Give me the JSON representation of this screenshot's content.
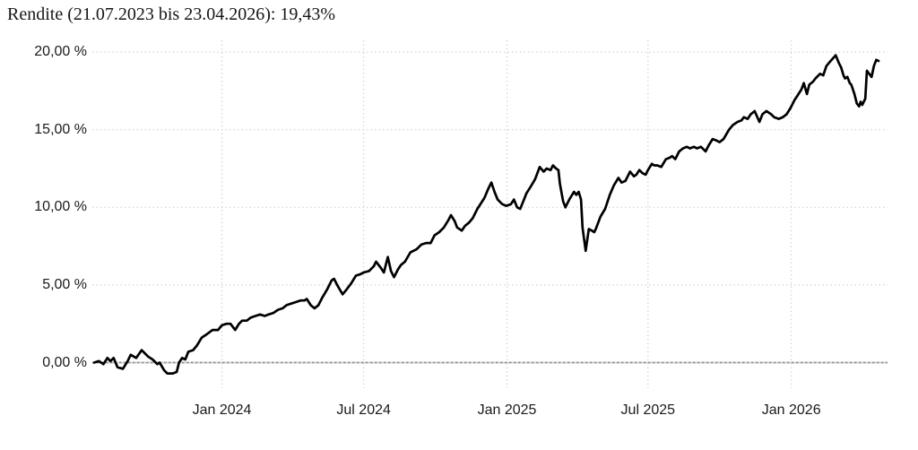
{
  "chart": {
    "title": "Rendite (21.07.2023 bis 23.04.2026): 19,43%"
  },
  "colors": {
    "line": "#000000",
    "grid": "#d2d2d2",
    "zero_line_dash": "#8c8c8c",
    "zero_line_base": "#d9d9d9",
    "text": "#1a1a1a",
    "background": "#ffffff"
  },
  "chart_data": {
    "type": "line",
    "title": "Rendite (21.07.2023 bis 23.04.2026): 19,43%",
    "period_start": "21.07.2023",
    "period_end": "23.04.2026",
    "total_return": "19,43%",
    "xlabel": "",
    "ylabel": "",
    "grid": true,
    "legend": "none",
    "zero_line": true,
    "x_range": [
      "2023-07-21",
      "2026-04-23"
    ],
    "ylim": [
      -1.6,
      20.8
    ],
    "x_ticks": [
      {
        "label": "Jan 2024",
        "date": "2024-01-01"
      },
      {
        "label": "Jul 2024",
        "date": "2024-07-01"
      },
      {
        "label": "Jan 2025",
        "date": "2025-01-01"
      },
      {
        "label": "Jul 2025",
        "date": "2025-07-01"
      },
      {
        "label": "Jan 2026",
        "date": "2026-01-01"
      }
    ],
    "y_ticks": [
      {
        "label": "20,00 %",
        "value": 20
      },
      {
        "label": "15,00 %",
        "value": 15
      },
      {
        "label": "10,00 %",
        "value": 10
      },
      {
        "label": "5,00 %",
        "value": 5
      },
      {
        "label": "0,00 %",
        "value": 0
      }
    ],
    "series": [
      {
        "name": "Rendite",
        "color": "#000000",
        "points": [
          [
            "2023-07-21",
            0.0
          ],
          [
            "2023-07-27",
            0.1
          ],
          [
            "2023-08-02",
            -0.1
          ],
          [
            "2023-08-07",
            0.3
          ],
          [
            "2023-08-11",
            0.1
          ],
          [
            "2023-08-15",
            0.3
          ],
          [
            "2023-08-20",
            -0.3
          ],
          [
            "2023-08-27",
            -0.4
          ],
          [
            "2023-09-02",
            0.1
          ],
          [
            "2023-09-06",
            0.5
          ],
          [
            "2023-09-13",
            0.3
          ],
          [
            "2023-09-20",
            0.8
          ],
          [
            "2023-09-28",
            0.4
          ],
          [
            "2023-10-04",
            0.2
          ],
          [
            "2023-10-10",
            -0.1
          ],
          [
            "2023-10-13",
            0.0
          ],
          [
            "2023-10-19",
            -0.5
          ],
          [
            "2023-10-23",
            -0.7
          ],
          [
            "2023-10-30",
            -0.7
          ],
          [
            "2023-11-04",
            -0.6
          ],
          [
            "2023-11-07",
            0.0
          ],
          [
            "2023-11-11",
            0.3
          ],
          [
            "2023-11-15",
            0.2
          ],
          [
            "2023-11-19",
            0.7
          ],
          [
            "2023-11-25",
            0.8
          ],
          [
            "2023-11-30",
            1.1
          ],
          [
            "2023-12-06",
            1.6
          ],
          [
            "2023-12-12",
            1.8
          ],
          [
            "2023-12-20",
            2.1
          ],
          [
            "2023-12-27",
            2.1
          ],
          [
            "2024-01-01",
            2.4
          ],
          [
            "2024-01-07",
            2.5
          ],
          [
            "2024-01-12",
            2.5
          ],
          [
            "2024-01-18",
            2.1
          ],
          [
            "2024-01-23",
            2.5
          ],
          [
            "2024-01-27",
            2.7
          ],
          [
            "2024-02-02",
            2.7
          ],
          [
            "2024-02-07",
            2.9
          ],
          [
            "2024-02-13",
            3.0
          ],
          [
            "2024-02-19",
            3.1
          ],
          [
            "2024-02-25",
            3.0
          ],
          [
            "2024-03-01",
            3.1
          ],
          [
            "2024-03-07",
            3.2
          ],
          [
            "2024-03-13",
            3.4
          ],
          [
            "2024-03-19",
            3.5
          ],
          [
            "2024-03-24",
            3.7
          ],
          [
            "2024-03-30",
            3.8
          ],
          [
            "2024-04-05",
            3.9
          ],
          [
            "2024-04-11",
            4.0
          ],
          [
            "2024-04-16",
            4.0
          ],
          [
            "2024-04-19",
            4.1
          ],
          [
            "2024-04-24",
            3.7
          ],
          [
            "2024-04-29",
            3.5
          ],
          [
            "2024-05-04",
            3.7
          ],
          [
            "2024-05-09",
            4.2
          ],
          [
            "2024-05-15",
            4.7
          ],
          [
            "2024-05-21",
            5.3
          ],
          [
            "2024-05-24",
            5.4
          ],
          [
            "2024-05-29",
            4.9
          ],
          [
            "2024-06-04",
            4.4
          ],
          [
            "2024-06-09",
            4.7
          ],
          [
            "2024-06-15",
            5.1
          ],
          [
            "2024-06-21",
            5.6
          ],
          [
            "2024-06-27",
            5.7
          ],
          [
            "2024-07-01",
            5.8
          ],
          [
            "2024-07-08",
            5.9
          ],
          [
            "2024-07-14",
            6.2
          ],
          [
            "2024-07-17",
            6.5
          ],
          [
            "2024-07-23",
            6.1
          ],
          [
            "2024-07-27",
            5.8
          ],
          [
            "2024-08-01",
            6.8
          ],
          [
            "2024-08-05",
            5.9
          ],
          [
            "2024-08-09",
            5.5
          ],
          [
            "2024-08-14",
            6.0
          ],
          [
            "2024-08-18",
            6.3
          ],
          [
            "2024-08-23",
            6.5
          ],
          [
            "2024-08-30",
            7.1
          ],
          [
            "2024-09-07",
            7.3
          ],
          [
            "2024-09-13",
            7.6
          ],
          [
            "2024-09-19",
            7.7
          ],
          [
            "2024-09-25",
            7.7
          ],
          [
            "2024-09-30",
            8.2
          ],
          [
            "2024-10-06",
            8.4
          ],
          [
            "2024-10-12",
            8.7
          ],
          [
            "2024-10-18",
            9.2
          ],
          [
            "2024-10-21",
            9.5
          ],
          [
            "2024-10-26",
            9.1
          ],
          [
            "2024-10-29",
            8.7
          ],
          [
            "2024-11-04",
            8.5
          ],
          [
            "2024-11-08",
            8.8
          ],
          [
            "2024-11-13",
            9.0
          ],
          [
            "2024-11-18",
            9.3
          ],
          [
            "2024-11-24",
            9.9
          ],
          [
            "2024-12-03",
            10.6
          ],
          [
            "2024-12-08",
            11.2
          ],
          [
            "2024-12-12",
            11.6
          ],
          [
            "2024-12-16",
            11.0
          ],
          [
            "2024-12-20",
            10.5
          ],
          [
            "2024-12-26",
            10.2
          ],
          [
            "2024-12-31",
            10.1
          ],
          [
            "2025-01-06",
            10.2
          ],
          [
            "2025-01-10",
            10.5
          ],
          [
            "2025-01-14",
            10.0
          ],
          [
            "2025-01-18",
            9.9
          ],
          [
            "2025-01-22",
            10.4
          ],
          [
            "2025-01-26",
            10.9
          ],
          [
            "2025-01-31",
            11.3
          ],
          [
            "2025-02-06",
            11.8
          ],
          [
            "2025-02-12",
            12.6
          ],
          [
            "2025-02-17",
            12.3
          ],
          [
            "2025-02-21",
            12.5
          ],
          [
            "2025-02-26",
            12.4
          ],
          [
            "2025-03-01",
            12.7
          ],
          [
            "2025-03-05",
            12.5
          ],
          [
            "2025-03-08",
            12.4
          ],
          [
            "2025-03-10",
            11.5
          ],
          [
            "2025-03-14",
            10.4
          ],
          [
            "2025-03-17",
            10.0
          ],
          [
            "2025-03-22",
            10.5
          ],
          [
            "2025-03-28",
            11.0
          ],
          [
            "2025-03-31",
            10.8
          ],
          [
            "2025-04-03",
            11.0
          ],
          [
            "2025-04-06",
            10.5
          ],
          [
            "2025-04-08",
            8.7
          ],
          [
            "2025-04-12",
            7.2
          ],
          [
            "2025-04-16",
            8.6
          ],
          [
            "2025-04-20",
            8.5
          ],
          [
            "2025-04-23",
            8.4
          ],
          [
            "2025-04-25",
            8.6
          ],
          [
            "2025-05-01",
            9.4
          ],
          [
            "2025-05-07",
            9.9
          ],
          [
            "2025-05-13",
            10.8
          ],
          [
            "2025-05-18",
            11.4
          ],
          [
            "2025-05-24",
            11.9
          ],
          [
            "2025-05-28",
            11.6
          ],
          [
            "2025-06-02",
            11.7
          ],
          [
            "2025-06-08",
            12.3
          ],
          [
            "2025-06-13",
            12.0
          ],
          [
            "2025-06-16",
            12.1
          ],
          [
            "2025-06-20",
            12.4
          ],
          [
            "2025-06-24",
            12.2
          ],
          [
            "2025-06-28",
            12.1
          ],
          [
            "2025-07-01",
            12.4
          ],
          [
            "2025-07-06",
            12.8
          ],
          [
            "2025-07-09",
            12.7
          ],
          [
            "2025-07-13",
            12.7
          ],
          [
            "2025-07-18",
            12.6
          ],
          [
            "2025-07-24",
            13.1
          ],
          [
            "2025-07-29",
            13.2
          ],
          [
            "2025-08-01",
            13.3
          ],
          [
            "2025-08-05",
            13.1
          ],
          [
            "2025-08-10",
            13.6
          ],
          [
            "2025-08-15",
            13.8
          ],
          [
            "2025-08-20",
            13.9
          ],
          [
            "2025-08-24",
            13.8
          ],
          [
            "2025-08-29",
            13.9
          ],
          [
            "2025-09-02",
            13.8
          ],
          [
            "2025-09-07",
            13.9
          ],
          [
            "2025-09-13",
            13.6
          ],
          [
            "2025-09-17",
            14.0
          ],
          [
            "2025-09-22",
            14.4
          ],
          [
            "2025-09-27",
            14.3
          ],
          [
            "2025-10-01",
            14.2
          ],
          [
            "2025-10-06",
            14.4
          ],
          [
            "2025-10-13",
            15.0
          ],
          [
            "2025-10-18",
            15.3
          ],
          [
            "2025-10-24",
            15.5
          ],
          [
            "2025-10-29",
            15.6
          ],
          [
            "2025-11-01",
            15.8
          ],
          [
            "2025-11-06",
            15.7
          ],
          [
            "2025-11-10",
            16.0
          ],
          [
            "2025-11-15",
            16.2
          ],
          [
            "2025-11-21",
            15.5
          ],
          [
            "2025-11-25",
            16.0
          ],
          [
            "2025-11-30",
            16.2
          ],
          [
            "2025-12-06",
            16.0
          ],
          [
            "2025-12-10",
            15.8
          ],
          [
            "2025-12-16",
            15.7
          ],
          [
            "2025-12-21",
            15.8
          ],
          [
            "2025-12-26",
            16.0
          ],
          [
            "2025-12-31",
            16.4
          ],
          [
            "2026-01-05",
            16.9
          ],
          [
            "2026-01-09",
            17.2
          ],
          [
            "2026-01-14",
            17.6
          ],
          [
            "2026-01-17",
            18.0
          ],
          [
            "2026-01-21",
            17.3
          ],
          [
            "2026-01-24",
            17.9
          ],
          [
            "2026-01-29",
            18.1
          ],
          [
            "2026-02-01",
            18.3
          ],
          [
            "2026-02-07",
            18.6
          ],
          [
            "2026-02-11",
            18.5
          ],
          [
            "2026-02-15",
            19.1
          ],
          [
            "2026-02-20",
            19.4
          ],
          [
            "2026-02-27",
            19.8
          ],
          [
            "2026-03-03",
            19.3
          ],
          [
            "2026-03-06",
            19.0
          ],
          [
            "2026-03-09",
            18.5
          ],
          [
            "2026-03-11",
            18.3
          ],
          [
            "2026-03-14",
            18.4
          ],
          [
            "2026-03-17",
            18.0
          ],
          [
            "2026-03-19",
            17.9
          ],
          [
            "2026-03-23",
            17.3
          ],
          [
            "2026-03-26",
            16.7
          ],
          [
            "2026-03-29",
            16.5
          ],
          [
            "2026-03-31",
            16.8
          ],
          [
            "2026-04-02",
            16.6
          ],
          [
            "2026-04-06",
            17.0
          ],
          [
            "2026-04-08",
            18.8
          ],
          [
            "2026-04-14",
            18.4
          ],
          [
            "2026-04-17",
            19.1
          ],
          [
            "2026-04-20",
            19.5
          ],
          [
            "2026-04-23",
            19.43
          ]
        ]
      }
    ]
  }
}
